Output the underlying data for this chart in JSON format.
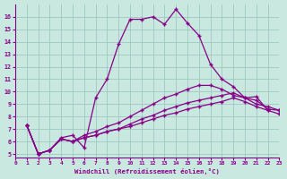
{
  "xlabel": "Windchill (Refroidissement éolien,°C)",
  "bg_color": "#c8e8e0",
  "grid_color": "#a0c8c0",
  "line_color": "#880088",
  "xlim": [
    0,
    23
  ],
  "ylim": [
    4.7,
    17.0
  ],
  "yticks": [
    5,
    6,
    7,
    8,
    9,
    10,
    11,
    12,
    13,
    14,
    15,
    16
  ],
  "xticks": [
    0,
    1,
    2,
    3,
    4,
    5,
    6,
    7,
    8,
    9,
    10,
    11,
    12,
    13,
    14,
    15,
    16,
    17,
    18,
    19,
    20,
    21,
    22,
    23
  ],
  "series": [
    {
      "x": [
        1,
        2,
        3,
        4,
        5,
        6,
        7,
        8,
        9,
        10,
        11,
        12,
        13,
        14,
        15,
        16,
        17,
        18,
        19,
        20,
        21,
        22
      ],
      "y": [
        7.3,
        5.0,
        5.3,
        6.3,
        6.5,
        5.5,
        9.5,
        11.0,
        13.8,
        15.8,
        15.8,
        16.0,
        15.4,
        16.6,
        15.5,
        14.5,
        12.2,
        11.0,
        10.4,
        9.5,
        9.6,
        8.5
      ]
    },
    {
      "x": [
        1,
        2,
        3,
        4,
        5,
        6,
        7,
        8,
        9,
        10,
        11,
        12,
        13,
        14,
        15,
        16,
        17,
        18,
        19,
        20,
        21,
        22,
        23
      ],
      "y": [
        7.3,
        5.0,
        5.3,
        6.2,
        6.0,
        6.5,
        6.8,
        7.2,
        7.5,
        8.0,
        8.5,
        9.0,
        9.5,
        9.8,
        10.2,
        10.5,
        10.5,
        10.2,
        9.7,
        9.5,
        9.3,
        8.6,
        8.5
      ]
    },
    {
      "x": [
        1,
        2,
        3,
        4,
        5,
        6,
        7,
        8,
        9,
        10,
        11,
        12,
        13,
        14,
        15,
        16,
        17,
        18,
        19,
        20,
        21,
        22,
        23
      ],
      "y": [
        7.3,
        5.0,
        5.3,
        6.2,
        6.0,
        6.3,
        6.5,
        6.8,
        7.0,
        7.4,
        7.8,
        8.1,
        8.5,
        8.8,
        9.1,
        9.3,
        9.5,
        9.7,
        9.9,
        9.5,
        9.0,
        8.8,
        8.5
      ]
    },
    {
      "x": [
        1,
        2,
        3,
        4,
        5,
        6,
        7,
        8,
        9,
        10,
        11,
        12,
        13,
        14,
        15,
        16,
        17,
        18,
        19,
        20,
        21,
        22,
        23
      ],
      "y": [
        7.3,
        5.0,
        5.3,
        6.2,
        6.0,
        6.3,
        6.5,
        6.8,
        7.0,
        7.2,
        7.5,
        7.8,
        8.1,
        8.3,
        8.6,
        8.8,
        9.0,
        9.2,
        9.5,
        9.2,
        8.8,
        8.5,
        8.2
      ]
    }
  ]
}
